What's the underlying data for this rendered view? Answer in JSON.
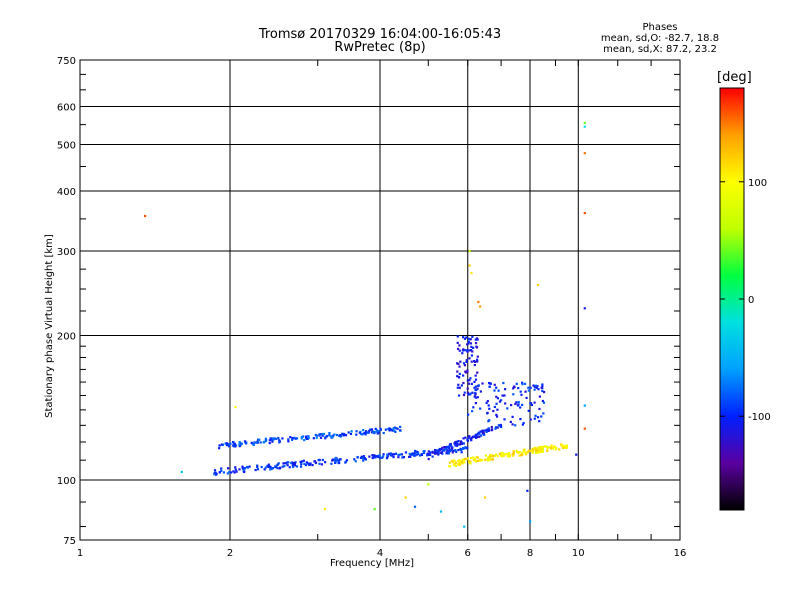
{
  "header": {
    "title_line1": "Tromsø 20170329 16:04:00-16:05:43",
    "title_line2": "RwPretec (8p)"
  },
  "stats": {
    "heading": "Phases",
    "line_o": "mean, sd,O: -82.7, 18.8",
    "line_x": "mean, sd,X:  87.2, 23.2"
  },
  "colorbar": {
    "unit": "[deg]",
    "ticks": [
      "100",
      "0",
      "-100"
    ],
    "tick_values": [
      100,
      0,
      -100
    ],
    "range": [
      -180,
      180
    ],
    "stops": [
      "#000000",
      "#5a00a0",
      "#0020ff",
      "#00a0ff",
      "#00e0e0",
      "#00ff40",
      "#c0ff00",
      "#ffff00",
      "#ffa000",
      "#ff0000"
    ]
  },
  "chart_data": {
    "type": "scatter",
    "title": "Tromsø 20170329 16:04:00-16:05:43",
    "subtitle": "RwPretec (8p)",
    "xlabel": "Frequency [MHz]",
    "ylabel": "Stationary phase Virtual Height [km]",
    "xscale": "log",
    "yscale": "log",
    "xlim": [
      1,
      16
    ],
    "ylim": [
      75,
      750
    ],
    "xticks": [
      1,
      2,
      4,
      6,
      8,
      10,
      16
    ],
    "xtick_labels": [
      "1",
      "2",
      "4",
      "6",
      "8",
      "10",
      "16"
    ],
    "yticks": [
      75,
      100,
      200,
      300,
      400,
      500,
      600,
      750
    ],
    "ytick_labels": [
      "75",
      "100",
      "200",
      "300",
      "400",
      "500",
      "600",
      "750"
    ],
    "grid": true,
    "color_variable": "phase [deg]",
    "clusters": [
      {
        "name": "low-trace-O",
        "x_range": [
          1.85,
          6.0
        ],
        "h_start": 104,
        "h_end": 116,
        "count": 260,
        "phase": -95
      },
      {
        "name": "upper-trace-O",
        "x_range": [
          1.9,
          4.5
        ],
        "h_start": 118,
        "h_end": 128,
        "count": 170,
        "phase": -88
      },
      {
        "name": "cusp-O",
        "x_range": [
          5.0,
          7.0
        ],
        "h_start": 112,
        "h_end": 130,
        "count": 110,
        "phase": -105
      },
      {
        "name": "spread-F-column",
        "x_range": [
          5.7,
          6.3
        ],
        "h_start": 150,
        "h_end": 200,
        "count": 90,
        "phase": -110
      },
      {
        "name": "X-trace",
        "x_range": [
          5.5,
          9.5
        ],
        "h_start": 108,
        "h_end": 118,
        "count": 170,
        "phase": 105
      },
      {
        "name": "spread-6-8MHz",
        "x_range": [
          6.0,
          8.6
        ],
        "h_start": 130,
        "h_end": 160,
        "count": 110,
        "phase": -100
      }
    ],
    "points": [
      {
        "x": 1.35,
        "y": 355,
        "phase": 160
      },
      {
        "x": 1.6,
        "y": 104,
        "phase": -40
      },
      {
        "x": 2.05,
        "y": 142,
        "phase": 100
      },
      {
        "x": 3.1,
        "y": 87,
        "phase": 110
      },
      {
        "x": 3.9,
        "y": 87,
        "phase": 40
      },
      {
        "x": 4.5,
        "y": 92,
        "phase": 120
      },
      {
        "x": 4.7,
        "y": 88,
        "phase": -80
      },
      {
        "x": 5.0,
        "y": 98,
        "phase": 60
      },
      {
        "x": 5.3,
        "y": 86,
        "phase": -40
      },
      {
        "x": 5.9,
        "y": 80,
        "phase": -40
      },
      {
        "x": 6.05,
        "y": 300,
        "phase": 60
      },
      {
        "x": 6.05,
        "y": 280,
        "phase": 120
      },
      {
        "x": 6.1,
        "y": 270,
        "phase": 110
      },
      {
        "x": 6.3,
        "y": 235,
        "phase": 150
      },
      {
        "x": 6.35,
        "y": 230,
        "phase": 140
      },
      {
        "x": 6.5,
        "y": 92,
        "phase": 120
      },
      {
        "x": 7.9,
        "y": 95,
        "phase": -100
      },
      {
        "x": 8.0,
        "y": 82,
        "phase": -60
      },
      {
        "x": 8.3,
        "y": 255,
        "phase": 120
      },
      {
        "x": 10.3,
        "y": 555,
        "phase": 40
      },
      {
        "x": 10.3,
        "y": 545,
        "phase": -20
      },
      {
        "x": 10.3,
        "y": 480,
        "phase": 150
      },
      {
        "x": 10.3,
        "y": 360,
        "phase": 160
      },
      {
        "x": 10.3,
        "y": 228,
        "phase": -110
      },
      {
        "x": 10.3,
        "y": 143,
        "phase": -60
      },
      {
        "x": 10.3,
        "y": 128,
        "phase": 160
      },
      {
        "x": 9.9,
        "y": 113,
        "phase": -110
      }
    ]
  }
}
